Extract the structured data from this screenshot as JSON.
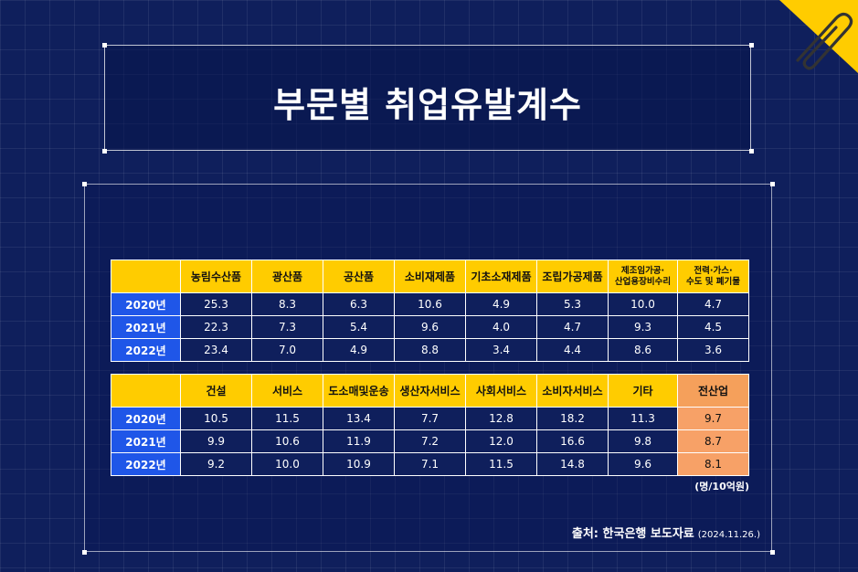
{
  "title": "부문별 취업유발계수",
  "table1": {
    "headers": [
      "농림수산품",
      "광산품",
      "공산품",
      "소비재제품",
      "기초소재제품",
      "조립가공제품",
      "제조임가공·\n산업용장비수리",
      "전력·가스·\n수도 및 폐기물"
    ],
    "rows": [
      {
        "year": "2020년",
        "values": [
          "25.3",
          "8.3",
          "6.3",
          "10.6",
          "4.9",
          "5.3",
          "10.0",
          "4.7"
        ]
      },
      {
        "year": "2021년",
        "values": [
          "22.3",
          "7.3",
          "5.4",
          "9.6",
          "4.0",
          "4.7",
          "9.3",
          "4.5"
        ]
      },
      {
        "year": "2022년",
        "values": [
          "23.4",
          "7.0",
          "4.9",
          "8.8",
          "3.4",
          "4.4",
          "8.6",
          "3.6"
        ]
      }
    ]
  },
  "table2": {
    "headers": [
      "건설",
      "서비스",
      "도소매및운송",
      "생산자서비스",
      "사회서비스",
      "소비자서비스",
      "기타",
      "전산업"
    ],
    "rows": [
      {
        "year": "2020년",
        "values": [
          "10.5",
          "11.5",
          "13.4",
          "7.7",
          "12.8",
          "18.2",
          "11.3",
          "9.7"
        ]
      },
      {
        "year": "2021년",
        "values": [
          "9.9",
          "10.6",
          "11.9",
          "7.2",
          "12.0",
          "16.6",
          "9.8",
          "8.7"
        ]
      },
      {
        "year": "2022년",
        "values": [
          "9.2",
          "10.0",
          "10.9",
          "7.1",
          "11.5",
          "14.8",
          "9.6",
          "8.1"
        ]
      }
    ]
  },
  "unit": "(명/10억원)",
  "source": {
    "label": "출처: 한국은행 보도자료",
    "date": "(2024.11.26.)"
  },
  "colors": {
    "background": "#0f1f5c",
    "header": "#ffcc00",
    "year": "#1f56e8",
    "highlight": "#f5a05b"
  },
  "icons": {
    "corner": "paperclip-icon"
  }
}
